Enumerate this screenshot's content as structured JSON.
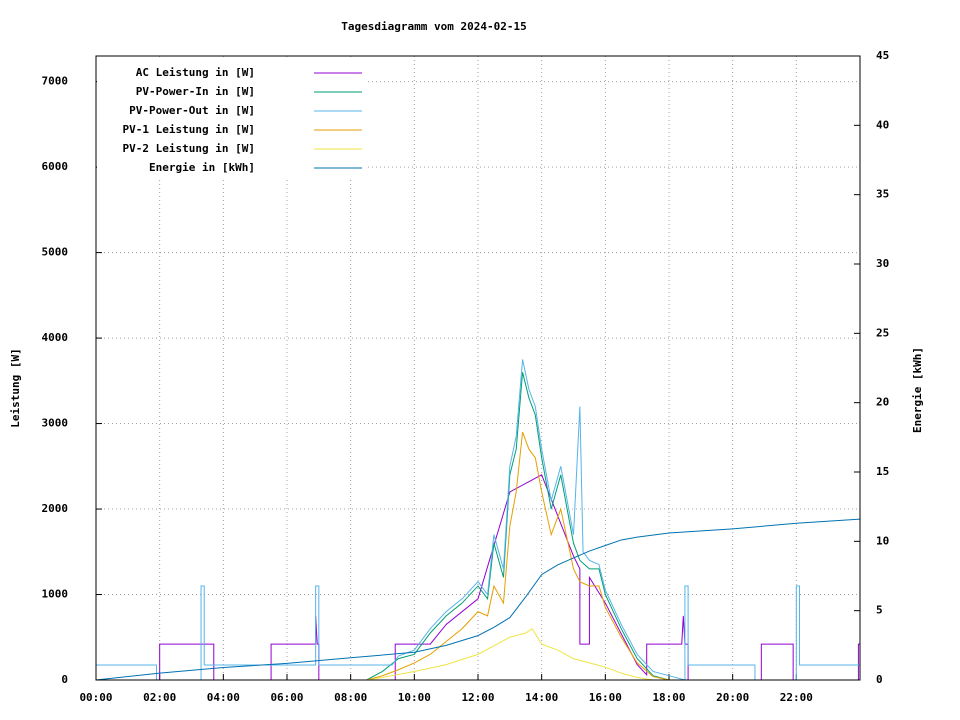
{
  "chart_data": {
    "type": "line",
    "title": "Tagesdiagramm vom 2024-02-15",
    "ylabel": "Leistung [W]",
    "y2label": "Energie [kWh]",
    "xlim": [
      0,
      24
    ],
    "xticks": [
      {
        "value": 0,
        "label": "00:00"
      },
      {
        "value": 2,
        "label": "02:00"
      },
      {
        "value": 4,
        "label": "04:00"
      },
      {
        "value": 6,
        "label": "06:00"
      },
      {
        "value": 8,
        "label": "08:00"
      },
      {
        "value": 10,
        "label": "10:00"
      },
      {
        "value": 12,
        "label": "12:00"
      },
      {
        "value": 14,
        "label": "14:00"
      },
      {
        "value": 16,
        "label": "16:00"
      },
      {
        "value": 18,
        "label": "18:00"
      },
      {
        "value": 20,
        "label": "20:00"
      },
      {
        "value": 22,
        "label": "22:00"
      }
    ],
    "ylim": [
      0,
      7300
    ],
    "yticks": [
      0,
      1000,
      2000,
      3000,
      4000,
      5000,
      6000,
      7000
    ],
    "y2lim": [
      0,
      45
    ],
    "y2ticks": [
      0,
      5,
      10,
      15,
      20,
      25,
      30,
      35,
      40,
      45
    ],
    "grid": true,
    "legend": "top-left",
    "series": [
      {
        "name": "AC Leistung in [W]",
        "color": "#9400d3",
        "x": [
          0,
          2.0,
          2.0,
          3.7,
          3.7,
          5.5,
          5.5,
          6.9,
          6.9,
          6.95,
          7.0,
          7.0,
          9.4,
          9.4,
          10.5,
          11,
          12,
          13,
          14,
          15,
          15.2,
          15.2,
          15.5,
          15.5,
          16,
          17,
          17.3,
          17.3,
          18.4,
          18.45,
          18.5,
          18.6,
          18.6,
          20.9,
          20.9,
          21.9,
          21.9,
          23.95,
          23.95,
          24
        ],
        "values": [
          0,
          0,
          420,
          420,
          0,
          0,
          420,
          420,
          750,
          420,
          420,
          0,
          0,
          420,
          420,
          650,
          950,
          2200,
          2400,
          1450,
          1300,
          420,
          420,
          1200,
          900,
          180,
          60,
          420,
          420,
          750,
          420,
          420,
          0,
          0,
          420,
          420,
          0,
          0,
          420,
          420
        ]
      },
      {
        "name": "PV-Power-In in [W]",
        "color": "#009e73",
        "x": [
          0,
          8.5,
          9,
          9.5,
          10,
          10.5,
          11,
          11.5,
          12,
          12.3,
          12.5,
          12.8,
          13,
          13.2,
          13.4,
          13.6,
          13.8,
          14,
          14.3,
          14.6,
          15,
          15.2,
          15.5,
          15.8,
          16,
          16.5,
          17,
          17.5,
          18,
          24
        ],
        "values": [
          0,
          0,
          100,
          250,
          300,
          550,
          750,
          900,
          1100,
          950,
          1600,
          1200,
          2400,
          2700,
          3600,
          3300,
          3100,
          2600,
          2000,
          2400,
          1600,
          1400,
          1300,
          1300,
          1000,
          600,
          250,
          50,
          0,
          0
        ]
      },
      {
        "name": "PV-Power-Out in [W]",
        "color": "#56b4e9",
        "x": [
          0,
          1.9,
          1.9,
          3.3,
          3.3,
          3.4,
          3.4,
          6.9,
          6.9,
          7.0,
          7.0,
          9.3,
          9.5,
          10,
          10.5,
          11,
          11.5,
          12,
          12.3,
          12.5,
          12.8,
          13,
          13.2,
          13.4,
          13.6,
          13.8,
          14,
          14.3,
          14.6,
          15,
          15.2,
          15.3,
          15.5,
          15.8,
          16,
          16.5,
          17,
          17.5,
          18.5,
          18.5,
          18.6,
          18.6,
          20.7,
          20.7,
          22.0,
          22.0,
          22.1,
          22.1,
          24
        ],
        "values": [
          175,
          175,
          0,
          0,
          1100,
          1100,
          175,
          175,
          1100,
          1100,
          175,
          175,
          280,
          350,
          600,
          800,
          950,
          1150,
          1000,
          1700,
          1300,
          2500,
          2850,
          3750,
          3400,
          3200,
          2700,
          2100,
          2500,
          1700,
          3200,
          1500,
          1400,
          1350,
          1050,
          650,
          300,
          100,
          0,
          1100,
          1100,
          175,
          175,
          0,
          0,
          1100,
          1100,
          175,
          175
        ]
      },
      {
        "name": "PV-1 Leistung in [W]",
        "color": "#e69f00",
        "x": [
          0,
          8.5,
          9,
          9.5,
          10,
          10.5,
          11,
          11.5,
          12,
          12.3,
          12.5,
          12.8,
          13,
          13.2,
          13.4,
          13.6,
          13.8,
          14,
          14.3,
          14.6,
          15,
          15.2,
          15.5,
          15.8,
          16,
          16.5,
          17,
          17.5,
          18,
          24
        ],
        "values": [
          0,
          0,
          50,
          120,
          200,
          300,
          450,
          600,
          800,
          750,
          1100,
          900,
          1800,
          2200,
          2900,
          2700,
          2600,
          2200,
          1700,
          2000,
          1300,
          1150,
          1100,
          1100,
          850,
          500,
          200,
          40,
          0,
          0
        ]
      },
      {
        "name": "PV-2 Leistung in [W]",
        "color": "#f0e442",
        "x": [
          0,
          8.5,
          9,
          10,
          11,
          12,
          12.5,
          13,
          13.5,
          13.7,
          14,
          14.5,
          15,
          15.5,
          16,
          16.5,
          17,
          17.5,
          24
        ],
        "values": [
          0,
          0,
          30,
          100,
          180,
          300,
          400,
          500,
          550,
          600,
          420,
          350,
          250,
          200,
          150,
          80,
          30,
          0,
          0
        ]
      },
      {
        "name": "Energie in [kWh]",
        "color": "#0072b2",
        "axis": "y2",
        "x": [
          0,
          2,
          4,
          6,
          8,
          10,
          11,
          12,
          12.5,
          13,
          13.5,
          14,
          14.5,
          15,
          15.5,
          16,
          16.5,
          17,
          18,
          20,
          22,
          24
        ],
        "values": [
          0,
          0.5,
          0.9,
          1.2,
          1.6,
          2.0,
          2.5,
          3.2,
          3.8,
          4.5,
          6.0,
          7.6,
          8.3,
          8.8,
          9.3,
          9.7,
          10.1,
          10.3,
          10.6,
          10.9,
          11.3,
          11.6
        ]
      }
    ]
  }
}
